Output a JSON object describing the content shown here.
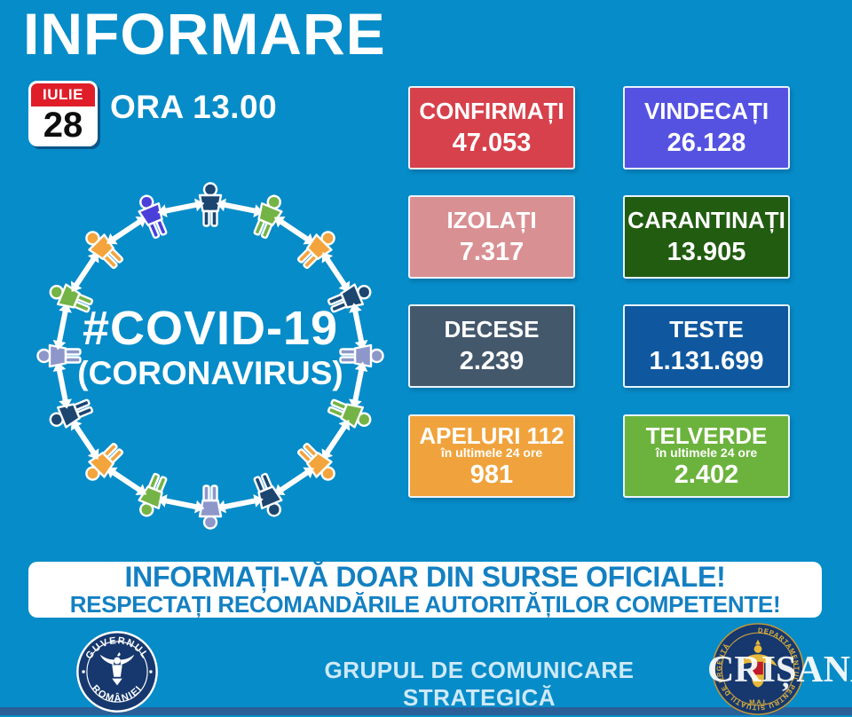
{
  "title": "INFORMARE",
  "date": {
    "month": "IULIE",
    "day": "28",
    "time_label": "ORA 13.00"
  },
  "hashtag": {
    "line1": "#COVID-19",
    "line2": "(CORONAVIRUS)"
  },
  "stats": [
    {
      "id": "confirmati",
      "label": "CONFIRMAȚI",
      "value": "47.053",
      "color": "#d7414b"
    },
    {
      "id": "vindecati",
      "label": "VINDECAȚI",
      "value": "26.128",
      "color": "#5552e2"
    },
    {
      "id": "izolati",
      "label": "IZOLAȚI",
      "value": "7.317",
      "color": "#d99093"
    },
    {
      "id": "carantinati",
      "label": "CARANTINAȚI",
      "value": "13.905",
      "color": "#215c10"
    },
    {
      "id": "decese",
      "label": "DECESE",
      "value": "2.239",
      "color": "#44586c"
    },
    {
      "id": "teste",
      "label": "TESTE",
      "value": "1.131.699",
      "color": "#0f589f"
    },
    {
      "id": "apeluri112",
      "label": "APELURI 112",
      "sublabel": "în ultimele 24 ore",
      "value": "981",
      "color": "#f0a33c"
    },
    {
      "id": "telverde",
      "label": "TELVERDE",
      "sublabel": "în ultimele 24 ore",
      "value": "2.402",
      "color": "#6cb33d"
    }
  ],
  "banner": {
    "line1": "INFORMAȚI-VĂ DOAR DIN SURSE OFICIALE!",
    "line2": "RESPECTAȚI RECOMANDĂRILE AUTORITĂȚILOR COMPETENTE!",
    "text_color": "#1380c2"
  },
  "footer": {
    "left_seal": {
      "top_text": "GUVERNUL",
      "bottom_text": "ROMÂNIEI"
    },
    "center_text": "GRUPUL DE COMUNICARE STRATEGICĂ",
    "right_seal": {
      "ring_text": "DEPARTAMENTUL PENTRU SITUAȚII DE URGENȚĂ",
      "bottom_text": "M.A.I."
    },
    "watermark": "CRIȘANA"
  },
  "colors": {
    "background": "#068cc8",
    "bottom_strip": "#2a5f97",
    "calendar_red": "#e01e2a",
    "seal_navy": "#16386e",
    "seal_gold": "#e8b83a"
  },
  "graphic": {
    "person_colors": [
      "#1c4670",
      "#74b345",
      "#f3a43c",
      "#1c4670",
      "#8e97c9",
      "#74b345",
      "#f3a43c",
      "#1c4670",
      "#8e97c9",
      "#74b345",
      "#f3a43c",
      "#1c4670",
      "#8e97c9",
      "#74b345",
      "#f3a43c",
      "#4b3fd9"
    ],
    "arrow_color": "#ffffff"
  }
}
